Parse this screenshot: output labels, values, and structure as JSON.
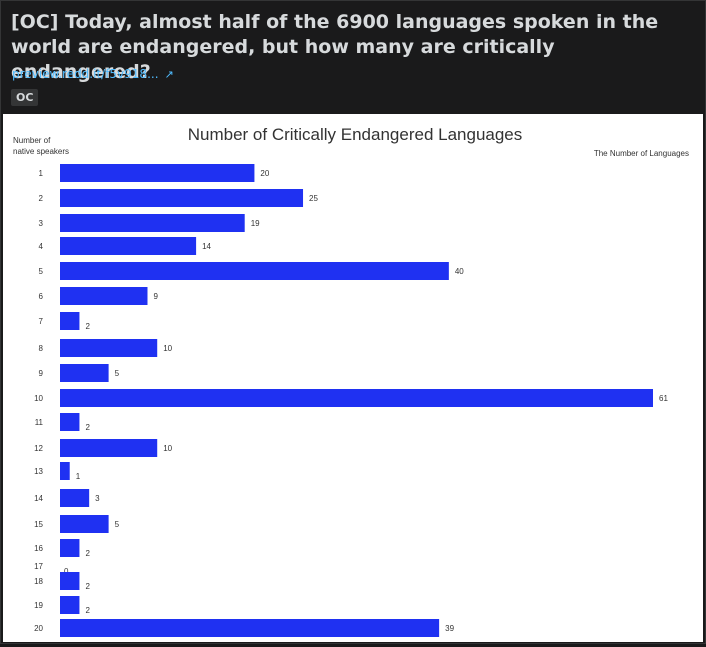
{
  "post": {
    "title": "[OC] Today, almost half of the 6900 languages spoken in the world are endangered, but how many are critically endangered?",
    "link_text": "preview.redd.it/f5v918...",
    "link_icon": "external-link-icon",
    "flair": "OC"
  },
  "colors": {
    "bar": "#1f31f2",
    "background": "#1a1a1b",
    "link": "#4fbcff"
  },
  "chart_data": {
    "type": "bar",
    "orientation": "horizontal",
    "title": "Number of Critically Endangered Languages",
    "ylabel": "Number of native speakers",
    "xlabel": "The Number of Languages",
    "categories": [
      "1",
      "2",
      "3",
      "4",
      "5",
      "6",
      "7",
      "8",
      "9",
      "10",
      "11",
      "12",
      "13",
      "14",
      "15",
      "16",
      "17",
      "18",
      "19",
      "20"
    ],
    "values": [
      20,
      25,
      19,
      14,
      40,
      9,
      2,
      10,
      5,
      61,
      2,
      10,
      1,
      3,
      5,
      2,
      0,
      2,
      2,
      39
    ],
    "xlim": [
      0,
      61
    ],
    "grid": false,
    "legend": "none"
  }
}
